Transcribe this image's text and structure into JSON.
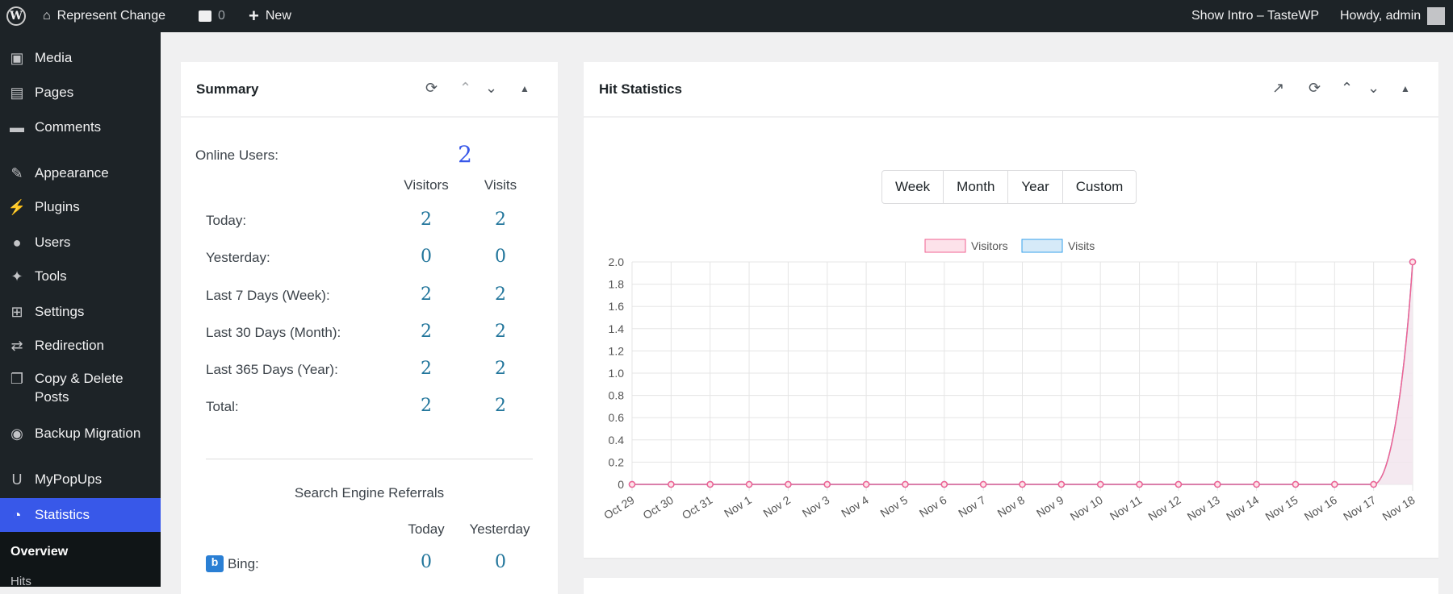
{
  "adminbar": {
    "site": "Represent Change",
    "comments": "0",
    "new": "New",
    "intro": "Show Intro – TasteWP",
    "howdy": "Howdy, admin"
  },
  "sidebar": {
    "items": [
      {
        "label": "Media",
        "icon": "media-icon"
      },
      {
        "label": "Pages",
        "icon": "pages-icon"
      },
      {
        "label": "Comments",
        "icon": "comments-icon"
      },
      {
        "label": "Appearance",
        "icon": "appearance-icon"
      },
      {
        "label": "Plugins",
        "icon": "plugins-icon"
      },
      {
        "label": "Users",
        "icon": "users-icon"
      },
      {
        "label": "Tools",
        "icon": "tools-icon"
      },
      {
        "label": "Settings",
        "icon": "settings-icon"
      },
      {
        "label": "Redirection",
        "icon": "redirection-icon"
      },
      {
        "label": "Copy & Delete Posts",
        "icon": "copy-delete-icon"
      },
      {
        "label": "Backup Migration",
        "icon": "backup-icon"
      },
      {
        "label": "MyPopUps",
        "icon": "mypopups-icon"
      },
      {
        "label": "Statistics",
        "icon": "statistics-icon"
      }
    ],
    "submenu": [
      "Overview",
      "Hits"
    ],
    "active_color": "#3858e9"
  },
  "summary": {
    "title": "Summary",
    "online_label": "Online Users:",
    "online_value": "2",
    "col_visitors": "Visitors",
    "col_visits": "Visits",
    "rows": [
      {
        "label": "Today:",
        "visitors": "2",
        "visits": "2"
      },
      {
        "label": "Yesterday:",
        "visitors": "0",
        "visits": "0"
      },
      {
        "label": "Last 7 Days (Week):",
        "visitors": "2",
        "visits": "2"
      },
      {
        "label": "Last 30 Days (Month):",
        "visitors": "2",
        "visits": "2"
      },
      {
        "label": "Last 365 Days (Year):",
        "visitors": "2",
        "visits": "2"
      },
      {
        "label": "Total:",
        "visitors": "2",
        "visits": "2"
      }
    ],
    "search_title": "Search Engine Referrals",
    "col_today": "Today",
    "col_yesterday": "Yesterday",
    "engines": [
      {
        "label": "Bing:",
        "today": "0",
        "yesterday": "0"
      }
    ]
  },
  "hits": {
    "title": "Hit Statistics",
    "ranges": [
      "Week",
      "Month",
      "Year",
      "Custom"
    ]
  },
  "chart_data": {
    "type": "line",
    "categories": [
      "Oct 29",
      "Oct 30",
      "Oct 31",
      "Nov 1",
      "Nov 2",
      "Nov 3",
      "Nov 4",
      "Nov 5",
      "Nov 6",
      "Nov 7",
      "Nov 8",
      "Nov 9",
      "Nov 10",
      "Nov 11",
      "Nov 12",
      "Nov 13",
      "Nov 14",
      "Nov 15",
      "Nov 16",
      "Nov 17",
      "Nov 18"
    ],
    "series": [
      {
        "name": "Visitors",
        "color": "#f06292",
        "fill": "#fde2ea",
        "values": [
          0,
          0,
          0,
          0,
          0,
          0,
          0,
          0,
          0,
          0,
          0,
          0,
          0,
          0,
          0,
          0,
          0,
          0,
          0,
          0,
          2
        ]
      },
      {
        "name": "Visits",
        "color": "#36a2eb",
        "fill": "#d6eaf8",
        "values": [
          0,
          0,
          0,
          0,
          0,
          0,
          0,
          0,
          0,
          0,
          0,
          0,
          0,
          0,
          0,
          0,
          0,
          0,
          0,
          0,
          2
        ]
      }
    ],
    "yticks": [
      "0",
      "0.2",
      "0.4",
      "0.6",
      "0.8",
      "1.0",
      "1.2",
      "1.4",
      "1.6",
      "1.8",
      "2.0"
    ],
    "ylim": [
      0,
      2
    ],
    "grid": true,
    "legend": "top"
  }
}
